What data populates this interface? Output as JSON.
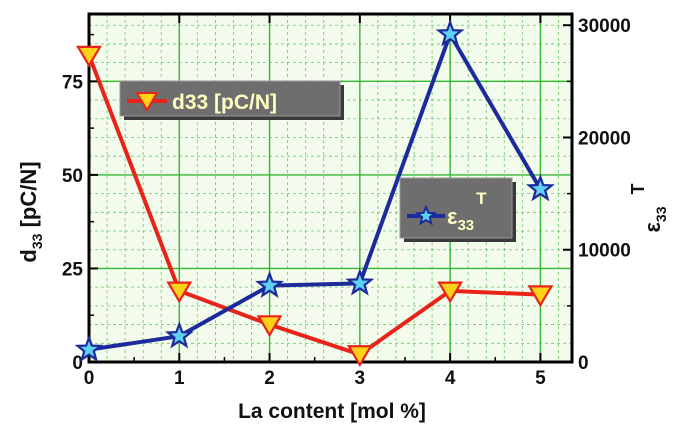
{
  "chart_data": {
    "type": "line",
    "x_axis": {
      "label_main": "La content [mol %]",
      "range": [
        0,
        5.35
      ],
      "ticks": [
        0,
        1,
        2,
        3,
        4,
        5
      ]
    },
    "y_left": {
      "label_main": "d",
      "label_sub": "33",
      "label_tail": " [pC/N]",
      "range": [
        0,
        93
      ],
      "ticks": [
        0,
        25,
        50,
        75
      ]
    },
    "y_right": {
      "label_main": "ε",
      "label_sub": "33",
      "label_sup": "T",
      "range": [
        0,
        31000
      ],
      "ticks": [
        0,
        10000,
        20000,
        30000
      ]
    },
    "grid": "on (dashed green minor, solid green major)",
    "series": [
      {
        "name": "d33 [pC/N]",
        "axis": "left",
        "color": "#e8231a",
        "marker": "triangle-down",
        "marker_fill": "#ffd21a",
        "x": [
          0,
          1,
          2,
          3,
          4,
          5
        ],
        "y": [
          82,
          19,
          10,
          2,
          19,
          18
        ]
      },
      {
        "name_main": "ε",
        "name_sub": "33",
        "name_sup": "T",
        "axis": "right",
        "color": "#1c2a9c",
        "marker": "star",
        "marker_fill": "#5fd1f0",
        "x": [
          0,
          1,
          2,
          3,
          4,
          5
        ],
        "y": [
          1100,
          2300,
          6800,
          7000,
          29200,
          15400
        ]
      }
    ],
    "legend_placement": "two boxes inside plot: upper-left for d33, center-right for ε33T"
  },
  "colors": {
    "plot_bg": "#f2fbec",
    "grid": "#32b832",
    "frame": "#000000",
    "legend_bg": "#6e6e6e",
    "legend_text": "#ffffc0"
  }
}
